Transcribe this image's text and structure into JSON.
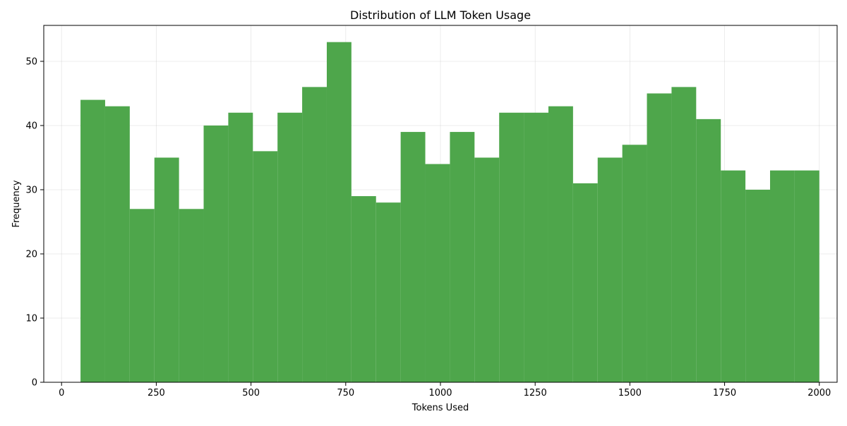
{
  "chart_data": {
    "type": "bar",
    "title": "Distribution of LLM Token Usage",
    "xlabel": "Tokens Used",
    "ylabel": "Frequency",
    "xlim": [
      -47,
      2047
    ],
    "ylim": [
      0,
      55.6
    ],
    "grid": true,
    "bar_color": "#4ea64b",
    "bins": [
      {
        "start": 50.0,
        "end": 115.0,
        "value": 44
      },
      {
        "start": 115.0,
        "end": 180.0,
        "value": 43
      },
      {
        "start": 180.0,
        "end": 245.0,
        "value": 27
      },
      {
        "start": 245.0,
        "end": 310.0,
        "value": 35
      },
      {
        "start": 310.0,
        "end": 375.0,
        "value": 27
      },
      {
        "start": 375.0,
        "end": 440.0,
        "value": 40
      },
      {
        "start": 440.0,
        "end": 505.0,
        "value": 42
      },
      {
        "start": 505.0,
        "end": 570.0,
        "value": 36
      },
      {
        "start": 570.0,
        "end": 635.0,
        "value": 42
      },
      {
        "start": 635.0,
        "end": 700.0,
        "value": 46
      },
      {
        "start": 700.0,
        "end": 765.0,
        "value": 53
      },
      {
        "start": 765.0,
        "end": 830.0,
        "value": 29
      },
      {
        "start": 830.0,
        "end": 895.0,
        "value": 28
      },
      {
        "start": 895.0,
        "end": 960.0,
        "value": 39
      },
      {
        "start": 960.0,
        "end": 1025.0,
        "value": 34
      },
      {
        "start": 1025.0,
        "end": 1090.0,
        "value": 39
      },
      {
        "start": 1090.0,
        "end": 1155.0,
        "value": 35
      },
      {
        "start": 1155.0,
        "end": 1220.0,
        "value": 42
      },
      {
        "start": 1220.0,
        "end": 1285.0,
        "value": 42
      },
      {
        "start": 1285.0,
        "end": 1350.0,
        "value": 43
      },
      {
        "start": 1350.0,
        "end": 1415.0,
        "value": 31
      },
      {
        "start": 1415.0,
        "end": 1480.0,
        "value": 35
      },
      {
        "start": 1480.0,
        "end": 1545.0,
        "value": 37
      },
      {
        "start": 1545.0,
        "end": 1610.0,
        "value": 45
      },
      {
        "start": 1610.0,
        "end": 1675.0,
        "value": 46
      },
      {
        "start": 1675.0,
        "end": 1740.0,
        "value": 41
      },
      {
        "start": 1740.0,
        "end": 1805.0,
        "value": 33
      },
      {
        "start": 1805.0,
        "end": 1870.0,
        "value": 30
      },
      {
        "start": 1870.0,
        "end": 1935.0,
        "value": 33
      },
      {
        "start": 1935.0,
        "end": 2000.0,
        "value": 33
      }
    ],
    "x_ticks": [
      0,
      250,
      500,
      750,
      1000,
      1250,
      1500,
      1750,
      2000
    ],
    "y_ticks": [
      0,
      10,
      20,
      30,
      40,
      50
    ]
  }
}
